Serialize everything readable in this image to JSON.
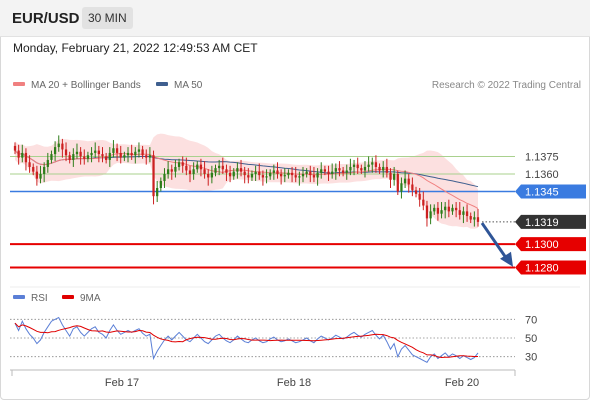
{
  "header": {
    "symbol": "EUR/USD",
    "interval": "30 MIN",
    "datetime": "Monday, February 21, 2022 12:49:53 AM CET"
  },
  "legend": {
    "ma20_label": "MA 20 + Bollinger Bands",
    "ma20_color": "#f08080",
    "ma50_label": "MA 50",
    "ma50_color": "#3f5f8f",
    "copyright": "Research © 2022 Trading Central"
  },
  "rsi_legend": {
    "rsi_label": "RSI",
    "rsi_color": "#5b7fd6",
    "ma9_label": "9MA",
    "ma9_color": "#e00000"
  },
  "colors": {
    "candle_up": "#2e7d1a",
    "candle_down": "#cc2020",
    "resistance_line": "#a9d18e",
    "pivot_line": "#3a7be0",
    "support_line": "#e60000",
    "last_price_badge": "#333333",
    "bollinger_fill": "#fbdada",
    "arrow": "#2f5597"
  },
  "chart_data": [
    {
      "type": "candlestick",
      "x_ticks": [
        "Feb 17",
        "Feb 18",
        "Feb 20"
      ],
      "ylim": [
        1.1265,
        1.1425
      ],
      "levels": [
        {
          "label": "1.1375",
          "value": 1.1375,
          "kind": "resistance"
        },
        {
          "label": "1.1360",
          "value": 1.136,
          "kind": "resistance"
        },
        {
          "label": "1.1345",
          "value": 1.1345,
          "kind": "pivot"
        },
        {
          "label": "1.1319",
          "value": 1.1319,
          "kind": "last"
        },
        {
          "label": "1.1300",
          "value": 1.13,
          "kind": "support"
        },
        {
          "label": "1.1280",
          "value": 1.128,
          "kind": "support"
        }
      ],
      "close": [
        1.138,
        1.1374,
        1.1378,
        1.137,
        1.1366,
        1.1362,
        1.1356,
        1.136,
        1.1366,
        1.1372,
        1.1377,
        1.1383,
        1.1386,
        1.1381,
        1.1376,
        1.1372,
        1.1377,
        1.1379,
        1.1375,
        1.1373,
        1.1376,
        1.1378,
        1.138,
        1.1377,
        1.1375,
        1.1372,
        1.1378,
        1.1382,
        1.1378,
        1.1374,
        1.1376,
        1.1378,
        1.1376,
        1.1379,
        1.1381,
        1.1376,
        1.1374,
        1.1376,
        1.1341,
        1.1348,
        1.1354,
        1.136,
        1.1364,
        1.1362,
        1.1366,
        1.137,
        1.1367,
        1.1363,
        1.136,
        1.1364,
        1.1368,
        1.1364,
        1.136,
        1.1357,
        1.1361,
        1.1365,
        1.1367,
        1.1364,
        1.1361,
        1.1358,
        1.1362,
        1.1365,
        1.1362,
        1.1359,
        1.1357,
        1.136,
        1.1362,
        1.1359,
        1.1357,
        1.1358,
        1.1361,
        1.1363,
        1.136,
        1.1358,
        1.1359,
        1.1361,
        1.1359,
        1.1357,
        1.1358,
        1.136,
        1.1362,
        1.1359,
        1.1357,
        1.1361,
        1.1364,
        1.1362,
        1.136,
        1.1362,
        1.1365,
        1.1363,
        1.1361,
        1.1363,
        1.1366,
        1.1368,
        1.1365,
        1.1363,
        1.1366,
        1.1368,
        1.137,
        1.1366,
        1.1363,
        1.1366,
        1.1361,
        1.1355,
        1.136,
        1.1345,
        1.1352,
        1.1356,
        1.1351,
        1.1346,
        1.1343,
        1.1338,
        1.1333,
        1.1322,
        1.1328,
        1.1331,
        1.1326,
        1.1329,
        1.1332,
        1.1328,
        1.1331,
        1.1329,
        1.1325,
        1.1328,
        1.1324,
        1.1321,
        1.1323,
        1.1319
      ]
    },
    {
      "type": "line",
      "name": "RSI",
      "yticks": [
        70,
        50,
        30
      ],
      "ylim": [
        20,
        80
      ],
      "x_ticks": [
        "Feb 17",
        "Feb 18",
        "Feb 20"
      ],
      "values": [
        66,
        58,
        68,
        60,
        54,
        50,
        44,
        48,
        56,
        62,
        68,
        70,
        72,
        64,
        58,
        52,
        60,
        62,
        56,
        52,
        56,
        60,
        62,
        56,
        54,
        50,
        58,
        64,
        58,
        54,
        56,
        58,
        56,
        58,
        60,
        55,
        52,
        54,
        28,
        36,
        42,
        48,
        52,
        48,
        52,
        56,
        52,
        48,
        46,
        50,
        54,
        50,
        46,
        44,
        48,
        52,
        54,
        50,
        47,
        45,
        48,
        52,
        49,
        46,
        45,
        48,
        50,
        47,
        45,
        46,
        49,
        51,
        48,
        46,
        47,
        49,
        47,
        45,
        46,
        48,
        50,
        47,
        45,
        49,
        52,
        50,
        48,
        50,
        53,
        51,
        49,
        51,
        54,
        56,
        53,
        51,
        54,
        56,
        58,
        53,
        49,
        53,
        46,
        38,
        44,
        30,
        38,
        42,
        37,
        32,
        30,
        28,
        26,
        24,
        30,
        33,
        28,
        31,
        34,
        30,
        33,
        31,
        28,
        31,
        29,
        27,
        29,
        34
      ]
    }
  ]
}
